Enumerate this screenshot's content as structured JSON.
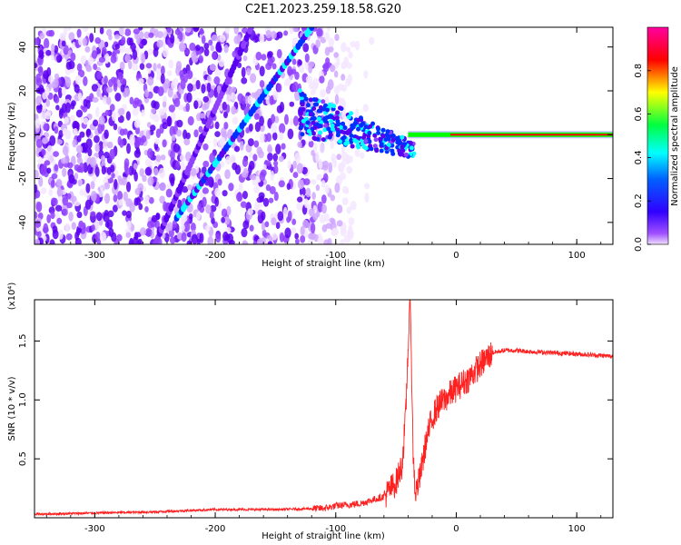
{
  "figure_title": "C2E1.2023.259.18.58.G20",
  "chart_data": [
    {
      "type": "heatmap",
      "xlabel": "Height of straight line (km)",
      "ylabel": "Frequency (Hz)",
      "xlim": [
        -350,
        130
      ],
      "ylim": [
        -50,
        49
      ],
      "xticks": [
        -300,
        -200,
        -100,
        0,
        100
      ],
      "yticks": [
        -40,
        -20,
        0,
        20,
        40
      ],
      "colorbar": {
        "label": "Normalized spectral amplitude",
        "range": [
          0.0,
          1.0
        ],
        "ticks": [
          0.0,
          0.2,
          0.4,
          0.6,
          0.8
        ],
        "colors": [
          "#f0e0ff",
          "#8a2be2",
          "#0000ff",
          "#00ffff",
          "#00ff00",
          "#ffff00",
          "#ff0000",
          "#ff00ff"
        ]
      },
      "features": {
        "signal_line": {
          "x": [
            -5,
            130
          ],
          "frequency": 0,
          "amplitude": 1.0
        },
        "diagonal_tracks": [
          {
            "x": [
              -232,
              -120
            ],
            "frequency": [
              -38,
              49
            ]
          },
          {
            "x": [
              -250,
              -170
            ],
            "frequency": [
              -50,
              49
            ]
          }
        ],
        "noise_region": {
          "x": [
            -350,
            -95
          ]
        }
      }
    },
    {
      "type": "line",
      "xlabel": "Height of straight line (km)",
      "ylabel": "SNR (10 * v/v)",
      "yscale_label": "(x10⁴)",
      "xlim": [
        -350,
        130
      ],
      "ylim": [
        0,
        1.85
      ],
      "xticks": [
        -300,
        -200,
        -100,
        0,
        100
      ],
      "yticks": [
        0.5,
        1.0,
        1.5
      ],
      "series": [
        {
          "color": "#ff2020",
          "x": [
            -350,
            -300,
            -250,
            -200,
            -150,
            -110,
            -100,
            -80,
            -60,
            -50,
            -45,
            -42,
            -40,
            -38,
            -36,
            -34,
            -30,
            -25,
            -20,
            -15,
            -10,
            -5,
            0,
            10,
            20,
            30,
            40,
            50,
            60,
            80,
            100,
            130
          ],
          "y": [
            0.03,
            0.04,
            0.05,
            0.07,
            0.07,
            0.08,
            0.1,
            0.12,
            0.18,
            0.3,
            0.45,
            0.85,
            1.45,
            1.85,
            0.6,
            0.2,
            0.35,
            0.65,
            0.85,
            0.95,
            1.0,
            1.05,
            1.1,
            1.18,
            1.3,
            1.4,
            1.42,
            1.42,
            1.41,
            1.4,
            1.39,
            1.37
          ]
        }
      ]
    }
  ]
}
